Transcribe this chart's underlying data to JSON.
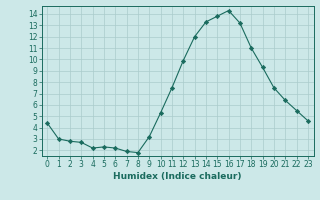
{
  "x": [
    0,
    1,
    2,
    3,
    4,
    5,
    6,
    7,
    8,
    9,
    10,
    11,
    12,
    13,
    14,
    15,
    16,
    17,
    18,
    19,
    20,
    21,
    22,
    23
  ],
  "y": [
    4.4,
    3.0,
    2.8,
    2.7,
    2.2,
    2.3,
    2.2,
    1.9,
    1.8,
    3.2,
    5.3,
    7.5,
    9.9,
    12.0,
    13.3,
    13.8,
    14.3,
    13.2,
    11.0,
    9.3,
    7.5,
    6.4,
    5.5,
    4.6
  ],
  "xlabel": "Humidex (Indice chaleur)",
  "ylim": [
    1.5,
    14.7
  ],
  "xlim": [
    -0.5,
    23.5
  ],
  "yticks": [
    2,
    3,
    4,
    5,
    6,
    7,
    8,
    9,
    10,
    11,
    12,
    13,
    14
  ],
  "xticks": [
    0,
    1,
    2,
    3,
    4,
    5,
    6,
    7,
    8,
    9,
    10,
    11,
    12,
    13,
    14,
    15,
    16,
    17,
    18,
    19,
    20,
    21,
    22,
    23
  ],
  "line_color": "#1a6b5e",
  "marker": "D",
  "marker_size": 2.2,
  "bg_color": "#cce8e8",
  "grid_color": "#aacccc",
  "tick_label_fontsize": 5.5,
  "xlabel_fontsize": 6.5
}
